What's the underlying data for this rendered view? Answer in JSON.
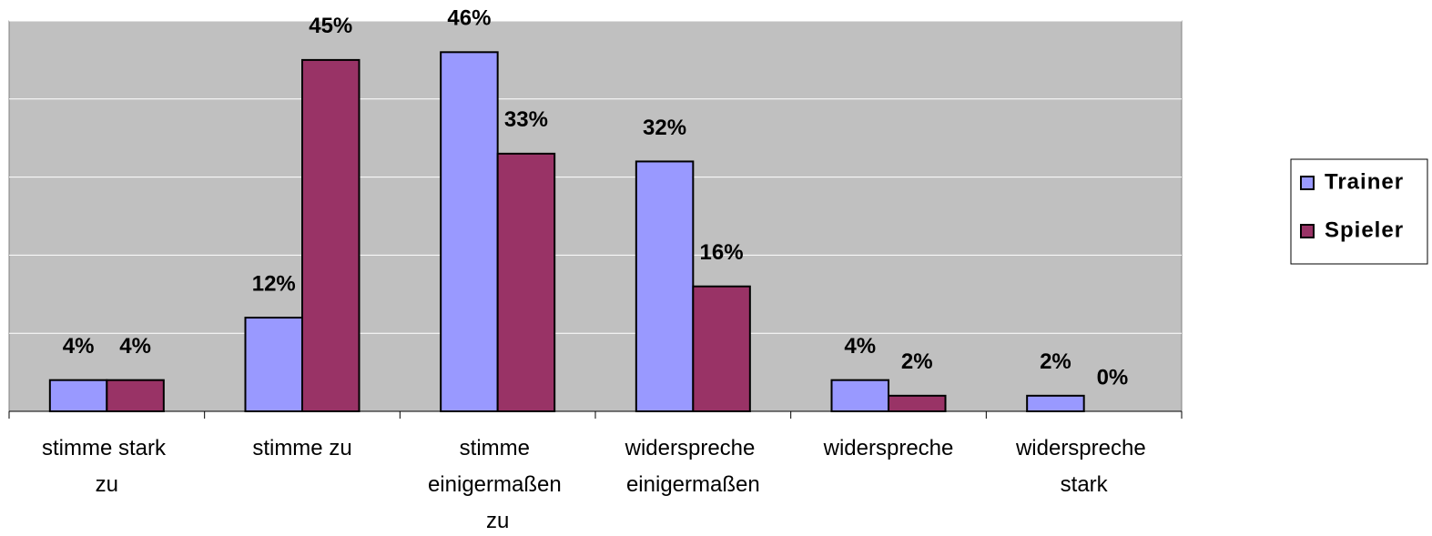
{
  "chart_data": {
    "type": "bar",
    "categories": [
      "stimme stark zu",
      "stimme zu",
      "stimme einigermaßen zu",
      "widerspreche einigermaßen",
      "widerspreche",
      "widerspreche stark"
    ],
    "series": [
      {
        "name": "Trainer",
        "color": "#9999ff",
        "values": [
          4,
          12,
          46,
          32,
          4,
          2
        ],
        "value_labels": [
          "4%",
          "12%",
          "46%",
          "32%",
          "4%",
          "2%"
        ]
      },
      {
        "name": "Spieler",
        "color": "#993366",
        "values": [
          4,
          45,
          33,
          16,
          2,
          0
        ],
        "value_labels": [
          "4%",
          "45%",
          "33%",
          "16%",
          "2%",
          "0%"
        ]
      }
    ],
    "ylim": [
      0,
      50
    ],
    "yticks": [
      0,
      10,
      20,
      30,
      40,
      50
    ],
    "grid": true,
    "legend": "right"
  }
}
